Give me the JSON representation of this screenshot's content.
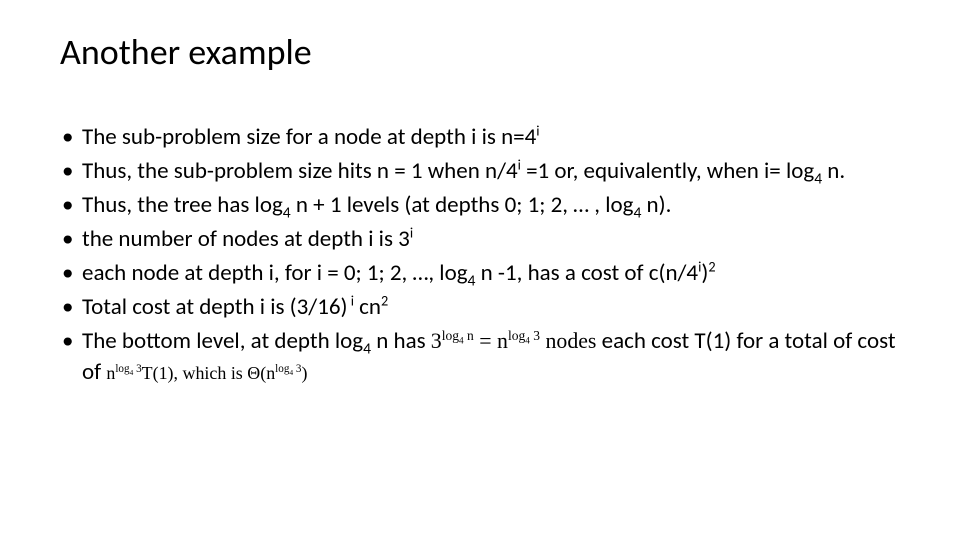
{
  "slide": {
    "title": "Another example",
    "background_color": "#ffffff",
    "text_color": "#000000",
    "title_fontsize": 36,
    "body_fontsize": 23,
    "font_family": "Calibri",
    "bullets": [
      {
        "pre": "The sub-problem size for a node at depth i is n=4",
        "sup1": "i"
      },
      {
        "pre": "Thus, the sub-problem size hits n = 1 when n/4",
        "sup1": "i",
        "mid": " =1 or, equivalently, when i= log",
        "sub1": "4",
        "post": " n."
      },
      {
        "pre": "Thus, the tree has log",
        "sub1": "4",
        "mid": " n + 1 levels (at depths 0; 1; 2, … , log",
        "sub2": "4",
        "post": " n)."
      },
      {
        "pre": "the number of nodes at depth i is 3",
        "sup1": "i"
      },
      {
        "pre": "each node at depth i, for i = 0; 1; 2, …, log",
        "sub1": "4",
        "mid": " n -1, has a cost of c(n/4",
        "sup1": "i",
        "post": ")",
        "sup2": "2"
      },
      {
        "pre": "Total cost at depth i is (3/16)",
        "sup1": " i",
        "mid": " cn",
        "sup2": "2"
      },
      {
        "pre": "The bottom level, at depth log",
        "sub1": "4",
        "mid": " n has ",
        "math1_a": "3",
        "math1_exp": "log",
        "math1_expsub": "4",
        "math1_expn": " n",
        "math1_eq": " = ",
        "math1_b": "n",
        "math1_exp2": "log",
        "math1_exp2sub": "4",
        "math1_exp2n": " 3",
        "math1_tail": " nodes",
        "post": "  each cost T(1) for a total of cost of ",
        "math2_a": "n",
        "math2_exp": "log",
        "math2_expsub": "4",
        "math2_expn": " 3",
        "math2_mid": "T(1), which is Θ(n",
        "math2_exp2": "log",
        "math2_exp2sub": "4",
        "math2_exp2n": " 3",
        "math2_tail": ")"
      }
    ]
  }
}
